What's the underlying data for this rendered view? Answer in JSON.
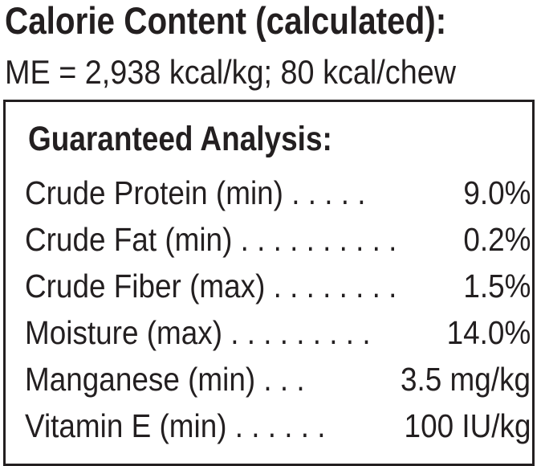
{
  "calorie": {
    "title": "Calorie Content (calculated):",
    "value": "ME = 2,938 kcal/kg; 80 kcal/chew"
  },
  "analysis": {
    "title": "Guaranteed Analysis:",
    "rows": [
      {
        "label": "Crude Protein (min) . . . . .",
        "value": "9.0%"
      },
      {
        "label": "Crude Fat (min) . . . . . . . . . .",
        "value": "0.2%"
      },
      {
        "label": "Crude Fiber (max) . . . . . . . .",
        "value": "1.5%"
      },
      {
        "label": "Moisture (max) . . . . . . . . .",
        "value": "14.0%"
      },
      {
        "label": "Manganese (min) . . .",
        "value": "3.5 mg/kg"
      },
      {
        "label": "Vitamin E (min) . . . . . .",
        "value": "100 IU/kg"
      }
    ]
  }
}
